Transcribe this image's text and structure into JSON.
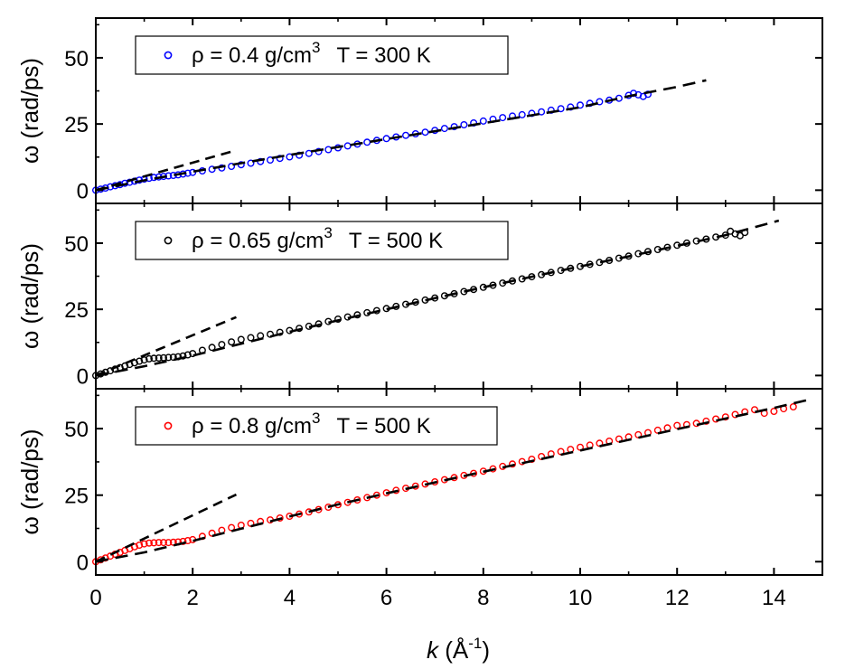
{
  "chart_data": {
    "type": "scatter",
    "xlabel": "k (Å-1)",
    "xlabel_parts": {
      "var": "k",
      "unit_open": " (Å",
      "unit_sup": "-1",
      "unit_close": ")"
    },
    "ylabel": "ω (rad/ps)",
    "xlim": [
      0,
      15
    ],
    "ylim": [
      -5,
      65
    ],
    "x_ticks": [
      "0",
      "2",
      "4",
      "6",
      "8",
      "10",
      "12",
      "14"
    ],
    "y_ticks": [
      "0",
      "25",
      "50"
    ],
    "legend_position": "top-left",
    "dashed_line_color": "#000000",
    "panels": [
      {
        "legend": {
          "rho": "ρ = 0.4 g/cm",
          "sup": "3",
          "temp": "T = 300 K"
        },
        "color": "#0000ff",
        "x_max": 11.4,
        "points": [
          [
            0.0,
            0.0
          ],
          [
            0.1,
            0.4
          ],
          [
            0.2,
            0.8
          ],
          [
            0.3,
            1.3
          ],
          [
            0.4,
            1.7
          ],
          [
            0.5,
            2.1
          ],
          [
            0.6,
            2.6
          ],
          [
            0.7,
            3.0
          ],
          [
            0.8,
            3.4
          ],
          [
            0.9,
            3.8
          ],
          [
            1.0,
            4.2
          ],
          [
            1.1,
            4.5
          ],
          [
            1.2,
            4.8
          ],
          [
            1.3,
            5.0
          ],
          [
            1.4,
            5.2
          ],
          [
            1.5,
            5.4
          ],
          [
            1.6,
            5.6
          ],
          [
            1.7,
            5.8
          ],
          [
            1.8,
            6.1
          ],
          [
            1.9,
            6.4
          ],
          [
            2.0,
            6.7
          ],
          [
            2.2,
            7.3
          ],
          [
            2.4,
            7.9
          ],
          [
            2.6,
            8.4
          ],
          [
            2.8,
            9.0
          ],
          [
            3.0,
            9.6
          ],
          [
            3.2,
            10.2
          ],
          [
            3.4,
            10.8
          ],
          [
            3.6,
            11.4
          ],
          [
            3.8,
            12.0
          ],
          [
            4.0,
            12.6
          ],
          [
            4.2,
            13.2
          ],
          [
            4.4,
            13.9
          ],
          [
            4.6,
            14.6
          ],
          [
            4.8,
            15.3
          ],
          [
            5.0,
            16.0
          ],
          [
            5.2,
            16.7
          ],
          [
            5.4,
            17.4
          ],
          [
            5.6,
            18.1
          ],
          [
            5.8,
            18.8
          ],
          [
            6.0,
            19.5
          ],
          [
            6.2,
            20.1
          ],
          [
            6.4,
            20.7
          ],
          [
            6.6,
            21.3
          ],
          [
            6.8,
            21.9
          ],
          [
            7.0,
            22.6
          ],
          [
            7.2,
            23.3
          ],
          [
            7.4,
            24.0
          ],
          [
            7.6,
            24.7
          ],
          [
            7.8,
            25.4
          ],
          [
            8.0,
            26.1
          ],
          [
            8.2,
            26.8
          ],
          [
            8.4,
            27.4
          ],
          [
            8.6,
            28.0
          ],
          [
            8.8,
            28.5
          ],
          [
            9.0,
            29.0
          ],
          [
            9.2,
            29.6
          ],
          [
            9.4,
            30.2
          ],
          [
            9.6,
            30.8
          ],
          [
            9.8,
            31.4
          ],
          [
            10.0,
            32.1
          ],
          [
            10.2,
            32.8
          ],
          [
            10.4,
            33.4
          ],
          [
            10.6,
            34.0
          ],
          [
            10.8,
            34.7
          ],
          [
            11.0,
            35.8
          ],
          [
            11.1,
            36.6
          ],
          [
            11.2,
            36.0
          ],
          [
            11.3,
            35.4
          ],
          [
            11.4,
            36.2
          ]
        ],
        "dash_low": {
          "x_end": 2.9,
          "slope": 5.2
        },
        "dash_high": {
          "x_end": 12.6,
          "points": [
            [
              0.0,
              0.0
            ],
            [
              1.0,
              3.7
            ],
            [
              2.0,
              7.0
            ],
            [
              3.0,
              10.2
            ],
            [
              4.0,
              13.3
            ],
            [
              5.0,
              16.3
            ],
            [
              6.0,
              19.3
            ],
            [
              7.0,
              22.3
            ],
            [
              8.0,
              25.3
            ],
            [
              9.0,
              28.3
            ],
            [
              10.0,
              31.3
            ],
            [
              11.0,
              35.5
            ],
            [
              12.0,
              39.0
            ],
            [
              12.6,
              41.5
            ]
          ]
        }
      },
      {
        "legend": {
          "rho": "ρ = 0.65 g/cm",
          "sup": "3",
          "temp": "T = 500 K"
        },
        "color": "#000000",
        "x_max": 13.4,
        "points": [
          [
            0.0,
            0.0
          ],
          [
            0.1,
            0.6
          ],
          [
            0.2,
            1.2
          ],
          [
            0.3,
            1.8
          ],
          [
            0.4,
            2.4
          ],
          [
            0.5,
            3.0
          ],
          [
            0.6,
            3.6
          ],
          [
            0.7,
            4.2
          ],
          [
            0.8,
            4.8
          ],
          [
            0.9,
            5.4
          ],
          [
            1.0,
            5.9
          ],
          [
            1.1,
            6.3
          ],
          [
            1.2,
            6.5
          ],
          [
            1.3,
            6.6
          ],
          [
            1.4,
            6.7
          ],
          [
            1.5,
            6.8
          ],
          [
            1.6,
            6.9
          ],
          [
            1.7,
            7.1
          ],
          [
            1.8,
            7.4
          ],
          [
            1.9,
            7.8
          ],
          [
            2.0,
            8.3
          ],
          [
            2.2,
            9.5
          ],
          [
            2.4,
            10.6
          ],
          [
            2.6,
            11.7
          ],
          [
            2.8,
            12.7
          ],
          [
            3.0,
            13.6
          ],
          [
            3.2,
            14.3
          ],
          [
            3.4,
            15.0
          ],
          [
            3.6,
            15.6
          ],
          [
            3.8,
            16.3
          ],
          [
            4.0,
            17.0
          ],
          [
            4.2,
            17.8
          ],
          [
            4.4,
            18.6
          ],
          [
            4.6,
            19.5
          ],
          [
            4.8,
            20.4
          ],
          [
            5.0,
            21.3
          ],
          [
            5.2,
            22.1
          ],
          [
            5.4,
            22.9
          ],
          [
            5.6,
            23.7
          ],
          [
            5.8,
            24.5
          ],
          [
            6.0,
            25.3
          ],
          [
            6.2,
            26.1
          ],
          [
            6.4,
            26.9
          ],
          [
            6.6,
            27.7
          ],
          [
            6.8,
            28.5
          ],
          [
            7.0,
            29.3
          ],
          [
            7.2,
            30.1
          ],
          [
            7.4,
            30.9
          ],
          [
            7.6,
            31.7
          ],
          [
            7.8,
            32.5
          ],
          [
            8.0,
            33.3
          ],
          [
            8.2,
            34.1
          ],
          [
            8.4,
            34.9
          ],
          [
            8.6,
            35.7
          ],
          [
            8.8,
            36.5
          ],
          [
            9.0,
            37.3
          ],
          [
            9.2,
            38.1
          ],
          [
            9.4,
            38.9
          ],
          [
            9.6,
            39.7
          ],
          [
            9.8,
            40.5
          ],
          [
            10.0,
            41.2
          ],
          [
            10.2,
            42.0
          ],
          [
            10.4,
            42.7
          ],
          [
            10.6,
            43.5
          ],
          [
            10.8,
            44.3
          ],
          [
            11.0,
            45.1
          ],
          [
            11.2,
            46.0
          ],
          [
            11.4,
            46.8
          ],
          [
            11.6,
            47.6
          ],
          [
            11.8,
            48.4
          ],
          [
            12.0,
            49.2
          ],
          [
            12.2,
            50.0
          ],
          [
            12.4,
            50.8
          ],
          [
            12.6,
            51.5
          ],
          [
            12.8,
            52.3
          ],
          [
            13.0,
            53.0
          ],
          [
            13.1,
            54.5
          ],
          [
            13.2,
            53.5
          ],
          [
            13.3,
            52.8
          ],
          [
            13.4,
            54.0
          ]
        ],
        "dash_low": {
          "x_end": 2.9,
          "slope": 7.6
        },
        "dash_high": {
          "x_end": 14.1,
          "points": [
            [
              0.0,
              0.0
            ],
            [
              1.0,
              3.5
            ],
            [
              2.0,
              7.5
            ],
            [
              3.0,
              12.0
            ],
            [
              4.0,
              16.5
            ],
            [
              5.0,
              20.8
            ],
            [
              6.0,
              25.0
            ],
            [
              7.0,
              29.2
            ],
            [
              8.0,
              33.3
            ],
            [
              9.0,
              37.3
            ],
            [
              10.0,
              41.2
            ],
            [
              11.0,
              45.0
            ],
            [
              12.0,
              49.0
            ],
            [
              13.0,
              53.0
            ],
            [
              14.1,
              58.5
            ]
          ]
        }
      },
      {
        "legend": {
          "rho": "ρ = 0.8 g/cm",
          "sup": "3",
          "temp": "T = 500 K"
        },
        "color": "#ff0000",
        "x_max": 14.4,
        "points": [
          [
            0.0,
            0.0
          ],
          [
            0.1,
            0.7
          ],
          [
            0.2,
            1.4
          ],
          [
            0.3,
            2.1
          ],
          [
            0.4,
            2.8
          ],
          [
            0.5,
            3.5
          ],
          [
            0.6,
            4.2
          ],
          [
            0.7,
            4.9
          ],
          [
            0.8,
            5.6
          ],
          [
            0.9,
            6.2
          ],
          [
            1.0,
            6.7
          ],
          [
            1.1,
            7.0
          ],
          [
            1.2,
            7.1
          ],
          [
            1.3,
            7.2
          ],
          [
            1.4,
            7.2
          ],
          [
            1.5,
            7.2
          ],
          [
            1.6,
            7.3
          ],
          [
            1.7,
            7.4
          ],
          [
            1.8,
            7.6
          ],
          [
            1.9,
            7.9
          ],
          [
            2.0,
            8.3
          ],
          [
            2.2,
            9.5
          ],
          [
            2.4,
            10.7
          ],
          [
            2.6,
            11.8
          ],
          [
            2.8,
            12.8
          ],
          [
            3.0,
            13.7
          ],
          [
            3.2,
            14.4
          ],
          [
            3.4,
            15.1
          ],
          [
            3.6,
            15.7
          ],
          [
            3.8,
            16.4
          ],
          [
            4.0,
            17.1
          ],
          [
            4.2,
            17.9
          ],
          [
            4.4,
            18.7
          ],
          [
            4.6,
            19.6
          ],
          [
            4.8,
            20.5
          ],
          [
            5.0,
            21.4
          ],
          [
            5.2,
            22.3
          ],
          [
            5.4,
            23.2
          ],
          [
            5.6,
            24.1
          ],
          [
            5.8,
            25.0
          ],
          [
            6.0,
            25.9
          ],
          [
            6.2,
            26.8
          ],
          [
            6.4,
            27.6
          ],
          [
            6.6,
            28.4
          ],
          [
            6.8,
            29.2
          ],
          [
            7.0,
            30.0
          ],
          [
            7.2,
            30.8
          ],
          [
            7.4,
            31.6
          ],
          [
            7.6,
            32.4
          ],
          [
            7.8,
            33.2
          ],
          [
            8.0,
            34.0
          ],
          [
            8.2,
            34.9
          ],
          [
            8.4,
            35.8
          ],
          [
            8.6,
            36.7
          ],
          [
            8.8,
            37.6
          ],
          [
            9.0,
            38.5
          ],
          [
            9.2,
            39.5
          ],
          [
            9.4,
            40.5
          ],
          [
            9.6,
            41.4
          ],
          [
            9.8,
            42.2
          ],
          [
            10.0,
            43.0
          ],
          [
            10.2,
            43.8
          ],
          [
            10.4,
            44.5
          ],
          [
            10.6,
            45.3
          ],
          [
            10.8,
            46.1
          ],
          [
            11.0,
            46.9
          ],
          [
            11.2,
            47.7
          ],
          [
            11.4,
            48.5
          ],
          [
            11.6,
            49.4
          ],
          [
            11.8,
            50.3
          ],
          [
            12.0,
            51.2
          ],
          [
            12.2,
            51.5
          ],
          [
            12.4,
            52.0
          ],
          [
            12.6,
            52.8
          ],
          [
            12.8,
            53.6
          ],
          [
            13.0,
            54.4
          ],
          [
            13.2,
            55.3
          ],
          [
            13.4,
            56.3
          ],
          [
            13.6,
            57.1
          ],
          [
            13.8,
            55.8
          ],
          [
            14.0,
            56.5
          ],
          [
            14.2,
            57.5
          ],
          [
            14.4,
            58.2
          ]
        ],
        "dash_low": {
          "x_end": 2.9,
          "slope": 8.7
        },
        "dash_high": {
          "x_end": 14.7,
          "points": [
            [
              0.0,
              0.0
            ],
            [
              1.0,
              3.5
            ],
            [
              2.0,
              7.8
            ],
            [
              3.0,
              12.4
            ],
            [
              4.0,
              17.0
            ],
            [
              5.0,
              21.5
            ],
            [
              6.0,
              25.7
            ],
            [
              7.0,
              29.8
            ],
            [
              8.0,
              33.8
            ],
            [
              9.0,
              37.8
            ],
            [
              10.0,
              41.8
            ],
            [
              11.0,
              45.8
            ],
            [
              12.0,
              49.8
            ],
            [
              13.0,
              53.8
            ],
            [
              14.0,
              57.8
            ],
            [
              14.7,
              60.8
            ]
          ]
        }
      }
    ]
  }
}
